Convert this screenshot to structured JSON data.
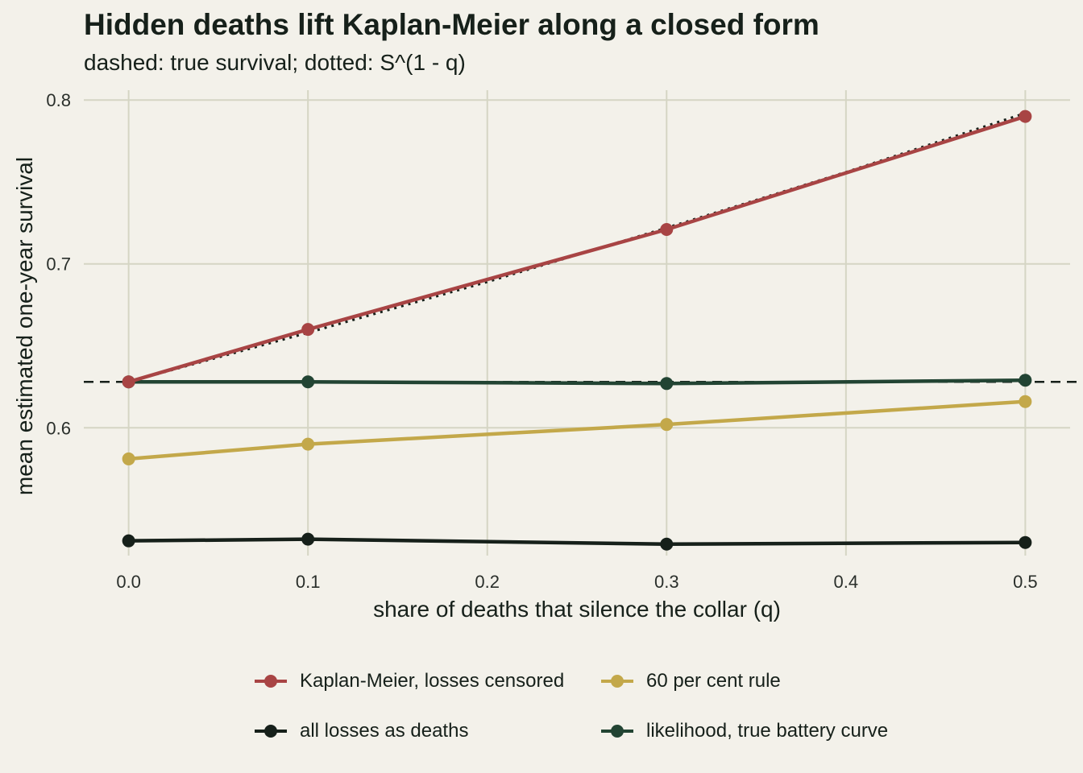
{
  "chart_data": {
    "type": "line",
    "title": "Hidden deaths lift Kaplan-Meier along a closed form",
    "subtitle": "dashed: true survival; dotted: S^(1 - q)",
    "xlabel": "share of deaths that silence the collar (q)",
    "ylabel": "mean estimated one-year survival",
    "x": [
      0.0,
      0.1,
      0.3,
      0.5
    ],
    "xticks": [
      0.0,
      0.1,
      0.2,
      0.3,
      0.4,
      0.5
    ],
    "xtick_labels": [
      "0.0",
      "0.1",
      "0.2",
      "0.3",
      "0.4",
      "0.5"
    ],
    "yticks": [
      0.6,
      0.7,
      0.8
    ],
    "ytick_labels": [
      "0.6",
      "0.7",
      "0.8"
    ],
    "xlim": [
      -0.025,
      0.525
    ],
    "ylim": [
      0.522,
      0.806
    ],
    "grid": true,
    "legend_position": "bottom",
    "series": [
      {
        "name": "Kaplan-Meier, losses censored",
        "color": "#a84444",
        "values": [
          0.628,
          0.66,
          0.721,
          0.79
        ]
      },
      {
        "name": "60 per cent rule",
        "color": "#c3a84a",
        "values": [
          0.581,
          0.59,
          0.602,
          0.616
        ]
      },
      {
        "name": "all losses as deaths",
        "color": "#16201a",
        "values": [
          0.531,
          0.532,
          0.529,
          0.53
        ]
      },
      {
        "name": "likelihood, true battery curve",
        "color": "#224433",
        "values": [
          0.628,
          0.628,
          0.627,
          0.629
        ]
      }
    ],
    "reference_lines": {
      "true_survival": 0.628,
      "closed_form_x": [
        0.0,
        0.1,
        0.2,
        0.3,
        0.4,
        0.5
      ],
      "closed_form_y": [
        0.628,
        0.658,
        0.689,
        0.722,
        0.756,
        0.792
      ]
    }
  }
}
